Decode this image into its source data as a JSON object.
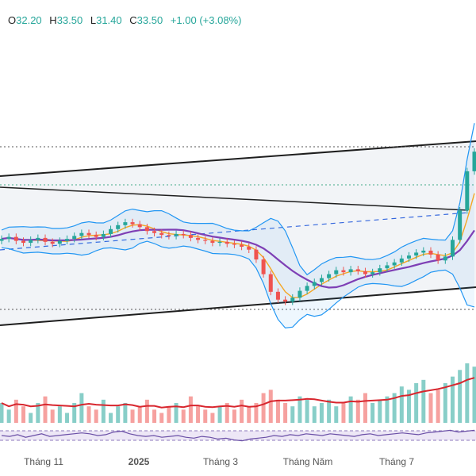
{
  "legend": {
    "open_label": "O",
    "open": "32.20",
    "high_label": "H",
    "high": "33.50",
    "low_label": "L",
    "low": "31.40",
    "close_label": "C",
    "close": "33.50",
    "change": "+1.00 (+3.08%)"
  },
  "colors": {
    "up": "#26a69a",
    "down": "#ef5350",
    "bollinger": "#2196f3",
    "ma_fast": "#f5a623",
    "ma_slow": "#7e3fb5",
    "channel": "#1e1e1e",
    "dashed_trend": "#3366dd",
    "volume_ma": "#d8262e",
    "rsi": "#6a4fa6",
    "text_up": "#26a69a"
  },
  "chart_data": [
    {
      "type": "candlestick",
      "title": "",
      "x_axis_labels": [
        "Tháng 11",
        "2025",
        "Tháng 3",
        "Tháng Năm",
        "Tháng 7"
      ],
      "last_candle": {
        "open": 32.2,
        "high": 33.5,
        "low": 31.4,
        "close": 33.5,
        "change": 1.0,
        "change_pct": 3.08
      },
      "series": [
        {
          "name": "",
          "kind": "price_close_approx",
          "values": [
            24.6,
            24.8,
            24.4,
            24.2,
            24.5,
            24.7,
            24.3,
            24.1,
            24.4,
            24.6,
            24.9,
            25.2,
            25.0,
            24.8,
            25.1,
            25.6,
            26.0,
            26.3,
            26.1,
            25.8,
            25.4,
            25.2,
            25.0,
            24.9,
            25.1,
            25.0,
            24.7,
            24.5,
            24.4,
            24.2,
            24.3,
            24.1,
            24.0,
            23.8,
            23.5,
            22.5,
            21.0,
            19.2,
            18.4,
            18.2,
            18.6,
            19.3,
            19.8,
            20.2,
            20.6,
            21.0,
            21.4,
            21.2,
            21.5,
            21.3,
            21.0,
            21.2,
            21.6,
            21.9,
            22.2,
            22.6,
            22.9,
            23.2,
            23.4,
            23.0,
            22.4,
            22.8,
            24.5,
            27.5,
            31.5,
            33.5
          ]
        }
      ],
      "annotations": [
        "ascending channel",
        "descending trendline",
        "dashed rising trendline",
        "Bollinger Bands",
        "moving averages"
      ]
    },
    {
      "type": "bar",
      "title": "",
      "series": [
        {
          "name": "",
          "kind": "volume",
          "values_relative": [
            0.6,
            0.4,
            0.7,
            0.5,
            0.3,
            0.6,
            0.8,
            0.4,
            0.5,
            0.3,
            0.6,
            0.9,
            0.5,
            0.4,
            0.7,
            0.3,
            0.5,
            0.6,
            0.4,
            0.5,
            0.7,
            0.4,
            0.3,
            0.5,
            0.6,
            0.4,
            0.8,
            0.5,
            0.4,
            0.3,
            0.5,
            0.6,
            0.4,
            0.7,
            0.5,
            0.6,
            0.9,
            1.0,
            0.7,
            0.6,
            0.5,
            0.8,
            0.7,
            0.5,
            0.6,
            0.7,
            0.5,
            0.6,
            0.8,
            0.7,
            0.9,
            0.6,
            0.7,
            0.8,
            0.9,
            1.1,
            1.0,
            1.2,
            1.3,
            0.9,
            1.0,
            1.2,
            1.4,
            1.6,
            1.8,
            1.7
          ]
        }
      ]
    },
    {
      "type": "line",
      "title": "",
      "series": [
        {
          "name": "",
          "kind": "oscillator",
          "values_relative": [
            0.5,
            0.45,
            0.55,
            0.4,
            0.5,
            0.6,
            0.45,
            0.5,
            0.55,
            0.6,
            0.65,
            0.6,
            0.5,
            0.55,
            0.7,
            0.75,
            0.6,
            0.5,
            0.45,
            0.5,
            0.4,
            0.45,
            0.5,
            0.4,
            0.35,
            0.45,
            0.4,
            0.3,
            0.35,
            0.25,
            0.2,
            0.3,
            0.35,
            0.4,
            0.5,
            0.45,
            0.55,
            0.5,
            0.6,
            0.55,
            0.5,
            0.6,
            0.55,
            0.5,
            0.45,
            0.55,
            0.6,
            0.5,
            0.55,
            0.6,
            0.65,
            0.6,
            0.55,
            0.65,
            0.7,
            0.75,
            0.8,
            0.7,
            0.75,
            0.8
          ]
        }
      ]
    }
  ]
}
